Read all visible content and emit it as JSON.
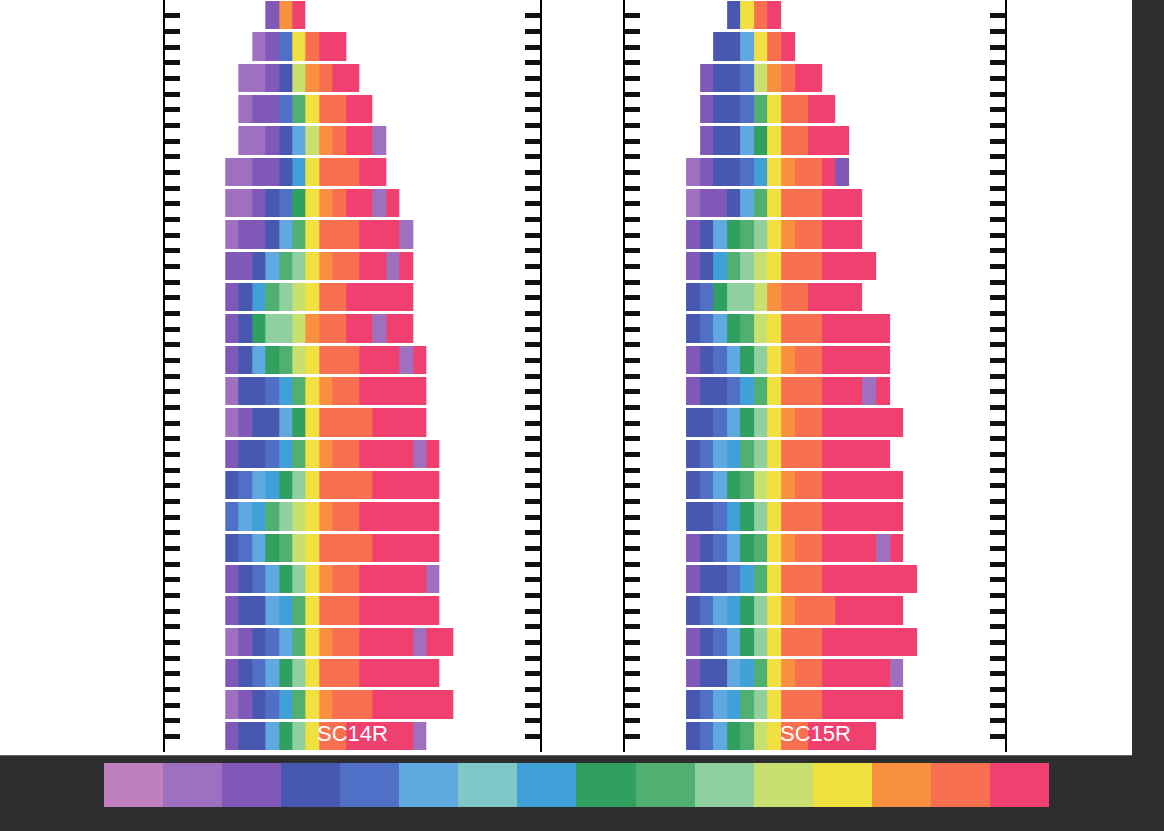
{
  "chart_data": [
    {
      "type": "heatmap",
      "label": "SC14R",
      "tick_labels": false,
      "xlim": [
        -5,
        23
      ],
      "ylim": [
        23.5,
        -0.5
      ],
      "yticks": [
        0,
        0.5,
        1,
        1.5,
        2,
        2.5,
        3,
        3.5,
        4,
        4.5,
        5,
        5.5,
        6,
        6.5,
        7,
        7.5,
        8,
        8.5,
        9,
        9.5,
        10,
        10.5,
        11,
        11.5,
        12,
        12.5,
        13,
        13.5,
        14,
        14.5,
        15,
        15.5,
        16,
        16.5,
        17,
        17.5,
        18,
        18.5,
        19,
        19.5,
        20,
        20.5,
        21,
        21.5,
        22,
        22.5,
        23
      ],
      "zlim": [
        -0.5,
        15.5
      ],
      "colors": [
        "#c080c0",
        "#a070c0",
        "#8058b8",
        "#4858b0",
        "#5070c8",
        "#60a8e0",
        "#80c8c8",
        "#40a0d8",
        "#30a060",
        "#50b070",
        "#90d0a0",
        "#c8e070",
        "#f0e040",
        "#f89040",
        "#f87050",
        "#f04070"
      ],
      "z": [
        [
          null,
          null,
          null,
          2,
          13,
          15,
          null,
          null,
          null,
          null,
          null,
          null,
          null,
          null,
          null,
          null,
          null,
          null
        ],
        [
          null,
          null,
          1,
          2,
          4,
          12,
          14,
          15,
          15,
          null,
          null,
          null,
          null,
          null,
          null,
          null,
          null,
          null
        ],
        [
          null,
          1,
          1,
          2,
          3,
          11,
          13,
          14,
          15,
          15,
          null,
          null,
          null,
          null,
          null,
          null,
          null,
          null
        ],
        [
          null,
          1,
          2,
          2,
          4,
          9,
          12,
          14,
          14,
          15,
          15,
          null,
          null,
          null,
          null,
          null,
          null,
          null
        ],
        [
          null,
          1,
          1,
          2,
          3,
          5,
          11,
          13,
          14,
          15,
          15,
          1,
          null,
          null,
          null,
          null,
          null,
          null
        ],
        [
          1,
          1,
          2,
          2,
          3,
          7,
          12,
          14,
          14,
          14,
          15,
          15,
          null,
          null,
          null,
          null,
          null,
          null
        ],
        [
          1,
          1,
          2,
          3,
          4,
          8,
          12,
          13,
          14,
          15,
          15,
          1,
          15,
          null,
          null,
          null,
          null,
          null
        ],
        [
          1,
          2,
          2,
          3,
          5,
          9,
          12,
          14,
          14,
          14,
          15,
          15,
          15,
          1,
          null,
          null,
          null,
          null
        ],
        [
          2,
          2,
          3,
          5,
          9,
          10,
          12,
          13,
          14,
          14,
          15,
          15,
          1,
          15,
          null,
          null,
          null,
          null
        ],
        [
          2,
          3,
          7,
          9,
          10,
          11,
          12,
          14,
          14,
          15,
          15,
          15,
          15,
          15,
          null,
          null,
          null,
          null
        ],
        [
          2,
          3,
          8,
          10,
          10,
          11,
          13,
          14,
          14,
          15,
          15,
          1,
          15,
          15,
          null,
          null,
          null,
          null
        ],
        [
          2,
          3,
          5,
          8,
          9,
          11,
          12,
          14,
          14,
          14,
          15,
          15,
          15,
          1,
          15,
          null,
          null,
          null
        ],
        [
          1,
          3,
          3,
          4,
          7,
          9,
          12,
          13,
          14,
          14,
          15,
          15,
          15,
          15,
          15,
          null,
          null,
          null
        ],
        [
          1,
          2,
          3,
          3,
          5,
          8,
          12,
          14,
          14,
          14,
          14,
          15,
          15,
          15,
          15,
          null,
          null,
          null
        ],
        [
          2,
          3,
          3,
          4,
          7,
          9,
          12,
          13,
          14,
          14,
          15,
          15,
          15,
          15,
          1,
          15,
          null,
          null
        ],
        [
          3,
          4,
          5,
          7,
          8,
          10,
          12,
          14,
          14,
          14,
          14,
          15,
          15,
          15,
          15,
          15,
          null,
          null
        ],
        [
          4,
          5,
          7,
          9,
          10,
          11,
          12,
          13,
          14,
          14,
          15,
          15,
          15,
          15,
          15,
          15,
          null,
          null
        ],
        [
          3,
          4,
          5,
          8,
          9,
          11,
          12,
          14,
          14,
          14,
          14,
          15,
          15,
          15,
          15,
          15,
          null,
          null
        ],
        [
          2,
          3,
          4,
          5,
          8,
          10,
          12,
          13,
          14,
          14,
          15,
          15,
          15,
          15,
          15,
          1,
          null,
          null
        ],
        [
          2,
          3,
          3,
          5,
          7,
          9,
          12,
          14,
          14,
          14,
          15,
          15,
          15,
          15,
          15,
          15,
          null,
          null
        ],
        [
          1,
          2,
          3,
          4,
          5,
          9,
          12,
          13,
          14,
          14,
          15,
          15,
          15,
          15,
          1,
          15,
          15,
          null
        ],
        [
          2,
          3,
          4,
          5,
          8,
          10,
          12,
          14,
          14,
          14,
          15,
          15,
          15,
          15,
          15,
          15,
          null,
          null
        ],
        [
          1,
          2,
          3,
          4,
          7,
          9,
          12,
          13,
          14,
          14,
          14,
          15,
          15,
          15,
          15,
          15,
          15,
          null
        ],
        [
          2,
          3,
          3,
          5,
          8,
          10,
          12,
          14,
          14,
          15,
          15,
          15,
          15,
          15,
          1,
          null,
          null,
          null
        ]
      ]
    },
    {
      "type": "heatmap",
      "label": "SC15R",
      "tick_labels": false,
      "xlim": [
        -5,
        23
      ],
      "ylim": [
        23.5,
        -0.5
      ],
      "yticks": [
        0,
        0.5,
        1,
        1.5,
        2,
        2.5,
        3,
        3.5,
        4,
        4.5,
        5,
        5.5,
        6,
        6.5,
        7,
        7.5,
        8,
        8.5,
        9,
        9.5,
        10,
        10.5,
        11,
        11.5,
        12,
        12.5,
        13,
        13.5,
        14,
        14.5,
        15,
        15.5,
        16,
        16.5,
        17,
        17.5,
        18,
        18.5,
        19,
        19.5,
        20,
        20.5,
        21,
        21.5,
        22,
        22.5,
        23
      ],
      "zlim": [
        -0.5,
        15.5
      ],
      "colors": [
        "#c080c0",
        "#a070c0",
        "#8058b8",
        "#4858b0",
        "#5070c8",
        "#60a8e0",
        "#80c8c8",
        "#40a0d8",
        "#30a060",
        "#50b070",
        "#90d0a0",
        "#c8e070",
        "#f0e040",
        "#f89040",
        "#f87050",
        "#f04070"
      ],
      "z": [
        [
          null,
          null,
          null,
          3,
          12,
          14,
          15,
          null,
          null,
          null,
          null,
          null,
          null,
          null,
          null,
          null,
          null,
          null
        ],
        [
          null,
          null,
          3,
          3,
          5,
          12,
          14,
          15,
          null,
          null,
          null,
          null,
          null,
          null,
          null,
          null,
          null,
          null
        ],
        [
          null,
          2,
          3,
          3,
          4,
          11,
          13,
          14,
          15,
          15,
          null,
          null,
          null,
          null,
          null,
          null,
          null,
          null
        ],
        [
          null,
          2,
          3,
          3,
          4,
          9,
          12,
          14,
          14,
          15,
          15,
          null,
          null,
          null,
          null,
          null,
          null,
          null
        ],
        [
          null,
          2,
          3,
          3,
          5,
          8,
          12,
          14,
          14,
          15,
          15,
          15,
          null,
          null,
          null,
          null,
          null,
          null
        ],
        [
          1,
          2,
          3,
          3,
          4,
          7,
          12,
          13,
          14,
          14,
          15,
          2,
          null,
          null,
          null,
          null,
          null,
          null
        ],
        [
          1,
          2,
          2,
          3,
          5,
          9,
          12,
          14,
          14,
          14,
          15,
          15,
          15,
          null,
          null,
          null,
          null,
          null
        ],
        [
          2,
          3,
          5,
          8,
          9,
          10,
          12,
          13,
          14,
          14,
          15,
          15,
          15,
          null,
          null,
          null,
          null,
          null
        ],
        [
          2,
          3,
          7,
          9,
          10,
          11,
          12,
          14,
          14,
          14,
          15,
          15,
          15,
          15,
          null,
          null,
          null,
          null
        ],
        [
          3,
          4,
          8,
          10,
          10,
          11,
          13,
          14,
          14,
          15,
          15,
          15,
          15,
          null,
          null,
          null,
          null,
          null
        ],
        [
          3,
          4,
          5,
          8,
          9,
          11,
          12,
          14,
          14,
          14,
          15,
          15,
          15,
          15,
          15,
          null,
          null,
          null
        ],
        [
          2,
          3,
          4,
          5,
          8,
          10,
          12,
          13,
          14,
          14,
          15,
          15,
          15,
          15,
          15,
          null,
          null,
          null
        ],
        [
          2,
          3,
          3,
          4,
          7,
          9,
          12,
          14,
          14,
          14,
          15,
          15,
          15,
          1,
          15,
          null,
          null,
          null
        ],
        [
          3,
          3,
          4,
          5,
          8,
          10,
          12,
          13,
          14,
          14,
          15,
          15,
          15,
          15,
          15,
          15,
          null,
          null
        ],
        [
          3,
          4,
          5,
          7,
          9,
          10,
          12,
          14,
          14,
          14,
          15,
          15,
          15,
          15,
          15,
          null,
          null,
          null
        ],
        [
          3,
          4,
          5,
          8,
          9,
          11,
          12,
          13,
          14,
          14,
          15,
          15,
          15,
          15,
          15,
          15,
          null,
          null
        ],
        [
          3,
          3,
          4,
          7,
          8,
          10,
          12,
          14,
          14,
          14,
          15,
          15,
          15,
          15,
          15,
          15,
          null,
          null
        ],
        [
          2,
          3,
          4,
          5,
          8,
          9,
          12,
          13,
          14,
          14,
          15,
          15,
          15,
          15,
          1,
          15,
          null,
          null
        ],
        [
          2,
          3,
          3,
          4,
          7,
          9,
          12,
          14,
          14,
          14,
          15,
          15,
          15,
          15,
          15,
          15,
          15,
          null
        ],
        [
          3,
          4,
          5,
          7,
          8,
          10,
          12,
          13,
          14,
          14,
          14,
          15,
          15,
          15,
          15,
          15,
          null,
          null
        ],
        [
          2,
          3,
          4,
          5,
          8,
          10,
          12,
          14,
          14,
          14,
          15,
          15,
          15,
          15,
          15,
          15,
          15,
          null
        ],
        [
          2,
          3,
          3,
          5,
          7,
          9,
          12,
          13,
          14,
          14,
          15,
          15,
          15,
          15,
          15,
          1,
          null,
          null
        ],
        [
          3,
          4,
          5,
          7,
          9,
          10,
          12,
          14,
          14,
          14,
          15,
          15,
          15,
          15,
          15,
          15,
          null,
          null
        ],
        [
          3,
          4,
          5,
          8,
          9,
          11,
          12,
          14,
          14,
          15,
          15,
          15,
          15,
          15,
          null,
          null,
          null,
          null
        ]
      ]
    }
  ]
}
